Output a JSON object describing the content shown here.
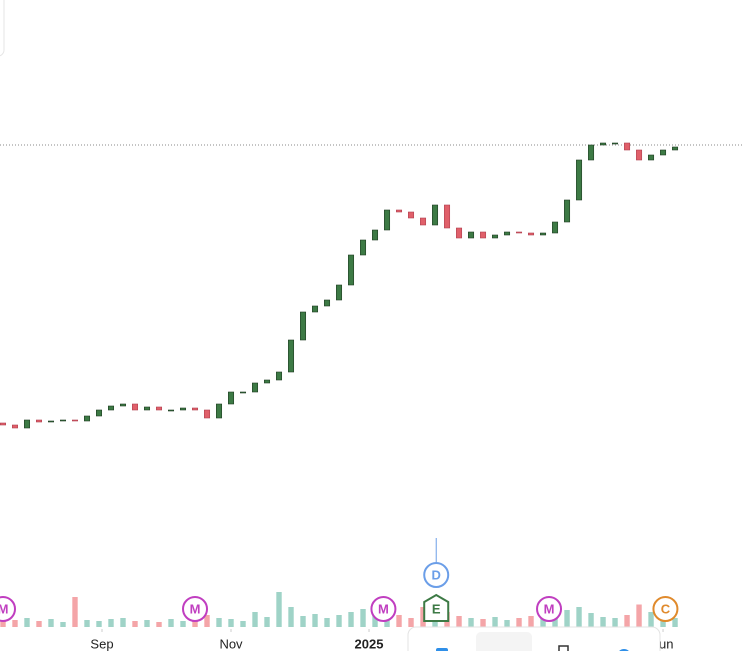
{
  "chart_data": {
    "type": "candlestick",
    "xlim": [
      -0.25,
      61.58
    ],
    "xticks": [
      {
        "value": 8.25,
        "label": "Sep"
      },
      {
        "value": 19,
        "label": "Nov"
      },
      {
        "value": 30.5,
        "label": "2025"
      },
      {
        "value": 55,
        "label": "Jun"
      }
    ],
    "ylim": [
      0,
      330
    ],
    "price_line": 305,
    "up_color": "#3d7a45",
    "down_color": "#e0606a",
    "volume_up_color": "#9fd3c7",
    "volume_down_color": "#f4a5a8",
    "open": [
      27,
      25,
      22,
      30,
      28,
      29,
      30,
      29,
      34,
      40,
      44,
      46,
      40,
      43,
      40,
      40,
      42,
      40,
      32,
      46,
      58,
      58,
      67,
      70,
      78,
      110,
      138,
      144,
      150,
      165,
      195,
      210,
      220,
      240,
      238,
      232,
      225,
      245,
      222,
      212,
      218,
      212,
      215,
      218,
      217,
      215,
      217,
      228,
      250,
      290,
      305,
      307,
      307,
      300,
      290,
      295,
      300
    ],
    "close": [
      25,
      22,
      30,
      28,
      29,
      30,
      29,
      34,
      40,
      44,
      46,
      40,
      43,
      40,
      40,
      42,
      40,
      32,
      46,
      58,
      58,
      67,
      70,
      78,
      110,
      138,
      144,
      150,
      165,
      195,
      210,
      220,
      240,
      238,
      232,
      225,
      245,
      222,
      212,
      218,
      212,
      215,
      218,
      217,
      215,
      217,
      228,
      250,
      290,
      305,
      307,
      307,
      300,
      290,
      295,
      300,
      303
    ],
    "volume_ylim": [
      0,
      100
    ],
    "volume": [
      22,
      14,
      18,
      12,
      16,
      10,
      60,
      14,
      12,
      16,
      18,
      12,
      14,
      10,
      16,
      12,
      14,
      24,
      18,
      16,
      12,
      30,
      20,
      70,
      40,
      22,
      26,
      18,
      24,
      30,
      36,
      28,
      20,
      24,
      18,
      40,
      46,
      30,
      22,
      18,
      16,
      20,
      14,
      18,
      22,
      26,
      50,
      34,
      40,
      28,
      20,
      18,
      24,
      45,
      30,
      22,
      18
    ],
    "events": [
      {
        "label": "M",
        "x": 0,
        "color": "#c03ec0"
      },
      {
        "label": "M",
        "x": 16,
        "color": "#c03ec0"
      },
      {
        "label": "M",
        "x": 31.7,
        "color": "#c03ec0"
      },
      {
        "label": "E",
        "x": 36.1,
        "color": "#3d7a45"
      },
      {
        "label": "D",
        "x": 36.1,
        "color": "#6b9ee8"
      },
      {
        "label": "M",
        "x": 45.5,
        "color": "#c03ec0"
      },
      {
        "label": "C",
        "x": 55.2,
        "color": "#e08a2c"
      }
    ]
  }
}
